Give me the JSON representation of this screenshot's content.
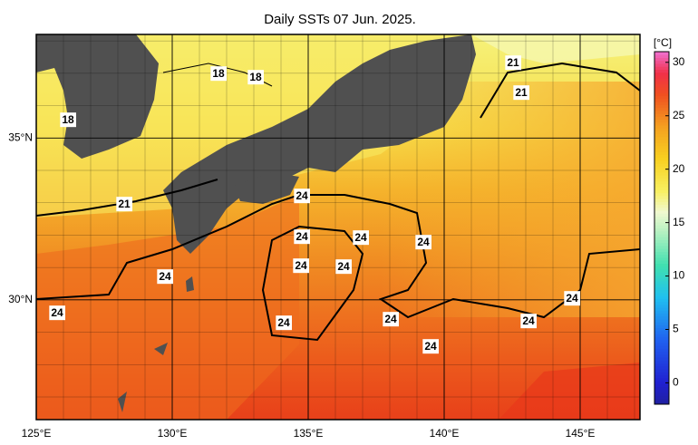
{
  "title": "Daily SSTs 07 Jun. 2025.",
  "map": {
    "xlim": [
      125,
      147.2
    ],
    "ylim": [
      26.3,
      38.2
    ],
    "xticks": [
      {
        "value": 125,
        "label": "125°E"
      },
      {
        "value": 130,
        "label": "130°E"
      },
      {
        "value": 135,
        "label": "135°E"
      },
      {
        "value": 140,
        "label": "140°E"
      },
      {
        "value": 145,
        "label": "145°E"
      }
    ],
    "yticks": [
      {
        "value": 30,
        "label": "30°N"
      },
      {
        "value": 35,
        "label": "35°N"
      }
    ],
    "contour_labels": [
      18,
      18,
      18,
      21,
      21,
      21,
      24,
      24,
      24,
      24,
      24,
      24,
      24,
      24,
      24,
      24,
      24,
      24,
      24
    ]
  },
  "colorbar": {
    "label": "[°C]",
    "lim": [
      -2,
      31
    ],
    "ticks": [
      0,
      5,
      10,
      15,
      20,
      25,
      30
    ]
  }
}
